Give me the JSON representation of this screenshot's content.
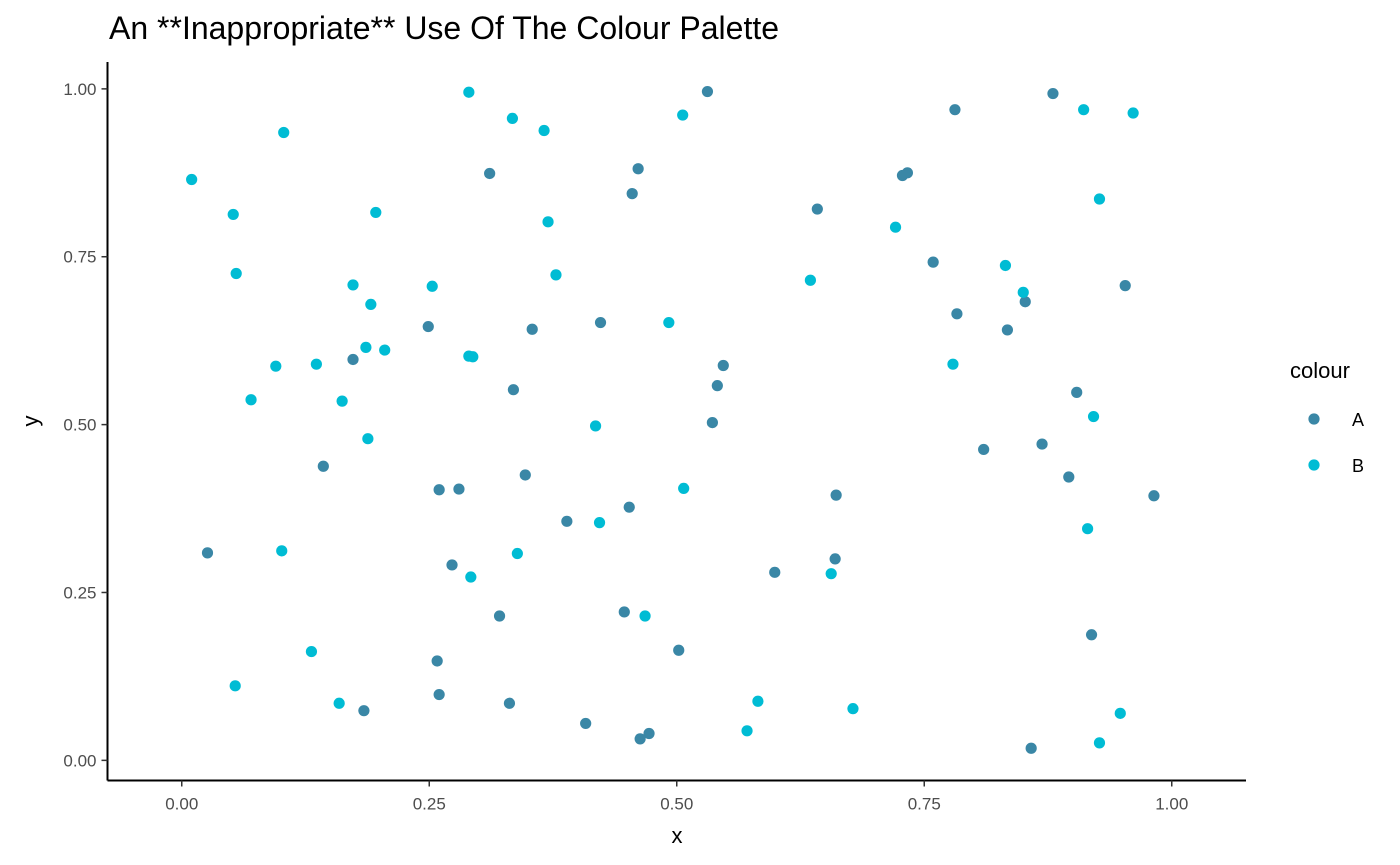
{
  "chart_data": {
    "type": "scatter",
    "title": "An **Inappropriate** Use Of The Colour Palette",
    "xlabel": "x",
    "ylabel": "y",
    "xlim": [
      -0.075,
      1.075
    ],
    "ylim": [
      -0.03,
      1.04
    ],
    "x_ticks": [
      0,
      0.25,
      0.5,
      0.75,
      1
    ],
    "x_tick_labels": [
      "0.00",
      "0.25",
      "0.50",
      "0.75",
      "1.00"
    ],
    "y_ticks": [
      0,
      0.25,
      0.5,
      0.75,
      1
    ],
    "y_tick_labels": [
      "0.00",
      "0.25",
      "0.50",
      "0.75",
      "1.00"
    ],
    "grid": false,
    "legend": {
      "title": "colour",
      "position": "right"
    },
    "series": [
      {
        "name": "A",
        "color": "#3a87a6",
        "points": [
          [
            0.531,
            0.996
          ],
          [
            0.88,
            0.993
          ],
          [
            0.781,
            0.969
          ],
          [
            0.461,
            0.881
          ],
          [
            0.311,
            0.874
          ],
          [
            0.733,
            0.875
          ],
          [
            0.728,
            0.871
          ],
          [
            0.455,
            0.844
          ],
          [
            0.642,
            0.821
          ],
          [
            0.759,
            0.742
          ],
          [
            0.953,
            0.707
          ],
          [
            0.852,
            0.683
          ],
          [
            0.783,
            0.665
          ],
          [
            0.423,
            0.652
          ],
          [
            0.249,
            0.646
          ],
          [
            0.354,
            0.642
          ],
          [
            0.834,
            0.641
          ],
          [
            0.173,
            0.597
          ],
          [
            0.547,
            0.588
          ],
          [
            0.541,
            0.558
          ],
          [
            0.335,
            0.552
          ],
          [
            0.904,
            0.548
          ],
          [
            0.536,
            0.503
          ],
          [
            0.869,
            0.471
          ],
          [
            0.81,
            0.463
          ],
          [
            0.143,
            0.438
          ],
          [
            0.347,
            0.425
          ],
          [
            0.896,
            0.422
          ],
          [
            0.26,
            0.403
          ],
          [
            0.28,
            0.404
          ],
          [
            0.661,
            0.395
          ],
          [
            0.982,
            0.394
          ],
          [
            0.452,
            0.377
          ],
          [
            0.389,
            0.356
          ],
          [
            0.026,
            0.309
          ],
          [
            0.66,
            0.3
          ],
          [
            0.273,
            0.291
          ],
          [
            0.599,
            0.28
          ],
          [
            0.447,
            0.221
          ],
          [
            0.321,
            0.215
          ],
          [
            0.919,
            0.187
          ],
          [
            0.502,
            0.164
          ],
          [
            0.258,
            0.148
          ],
          [
            0.26,
            0.098
          ],
          [
            0.331,
            0.085
          ],
          [
            0.184,
            0.074
          ],
          [
            0.408,
            0.055
          ],
          [
            0.472,
            0.04
          ],
          [
            0.463,
            0.032
          ],
          [
            0.858,
            0.018
          ]
        ]
      },
      {
        "name": "B",
        "color": "#00bcd4",
        "points": [
          [
            0.29,
            0.995
          ],
          [
            0.911,
            0.969
          ],
          [
            0.961,
            0.964
          ],
          [
            0.506,
            0.961
          ],
          [
            0.334,
            0.956
          ],
          [
            0.103,
            0.935
          ],
          [
            0.366,
            0.938
          ],
          [
            0.01,
            0.865
          ],
          [
            0.927,
            0.836
          ],
          [
            0.196,
            0.816
          ],
          [
            0.052,
            0.813
          ],
          [
            0.37,
            0.802
          ],
          [
            0.721,
            0.794
          ],
          [
            0.832,
            0.737
          ],
          [
            0.055,
            0.725
          ],
          [
            0.378,
            0.723
          ],
          [
            0.635,
            0.715
          ],
          [
            0.173,
            0.708
          ],
          [
            0.253,
            0.706
          ],
          [
            0.85,
            0.697
          ],
          [
            0.191,
            0.679
          ],
          [
            0.492,
            0.652
          ],
          [
            0.186,
            0.615
          ],
          [
            0.205,
            0.611
          ],
          [
            0.29,
            0.602
          ],
          [
            0.294,
            0.601
          ],
          [
            0.779,
            0.59
          ],
          [
            0.136,
            0.59
          ],
          [
            0.095,
            0.587
          ],
          [
            0.07,
            0.537
          ],
          [
            0.162,
            0.535
          ],
          [
            0.921,
            0.512
          ],
          [
            0.418,
            0.498
          ],
          [
            0.188,
            0.479
          ],
          [
            0.507,
            0.405
          ],
          [
            0.422,
            0.354
          ],
          [
            0.915,
            0.345
          ],
          [
            0.101,
            0.312
          ],
          [
            0.339,
            0.308
          ],
          [
            0.656,
            0.278
          ],
          [
            0.292,
            0.273
          ],
          [
            0.468,
            0.215
          ],
          [
            0.131,
            0.162
          ],
          [
            0.054,
            0.111
          ],
          [
            0.582,
            0.088
          ],
          [
            0.159,
            0.085
          ],
          [
            0.678,
            0.077
          ],
          [
            0.948,
            0.07
          ],
          [
            0.571,
            0.044
          ],
          [
            0.927,
            0.026
          ]
        ]
      }
    ]
  }
}
